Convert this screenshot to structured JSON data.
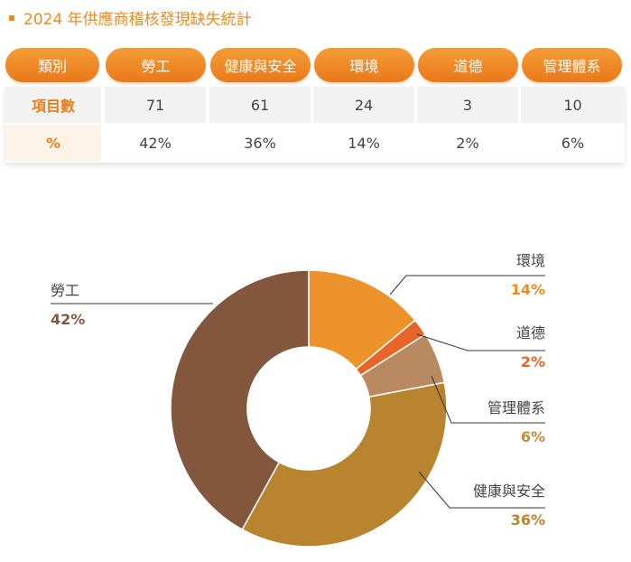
{
  "title": "2024 年供應商稽核發現缺失統計",
  "table": {
    "header_label": "類別",
    "columns": [
      "勞工",
      "健康與安全",
      "環境",
      "道德",
      "管理體系"
    ],
    "rows": [
      {
        "label": "項目數",
        "values": [
          "71",
          "61",
          "24",
          "3",
          "10"
        ]
      },
      {
        "label": "%",
        "values": [
          "42%",
          "36%",
          "14%",
          "2%",
          "6%"
        ]
      }
    ]
  },
  "chart_data": {
    "type": "pie",
    "donut": true,
    "slices": [
      {
        "name": "環境",
        "value": 14,
        "label": "14%",
        "color": "#ee932b"
      },
      {
        "name": "道德",
        "value": 2,
        "label": "2%",
        "color": "#e8652a"
      },
      {
        "name": "管理體系",
        "value": 6,
        "label": "6%",
        "color": "#b98a62"
      },
      {
        "name": "健康與安全",
        "value": 36,
        "label": "36%",
        "color": "#b98430"
      },
      {
        "name": "勞工",
        "value": 42,
        "label": "42%",
        "color": "#83573d"
      }
    ],
    "label_colors": {
      "環境": "#ee8a1e",
      "道德": "#e8652a",
      "管理體系": "#c78a40",
      "健康與安全": "#b98430",
      "勞工": "#83573d"
    }
  }
}
